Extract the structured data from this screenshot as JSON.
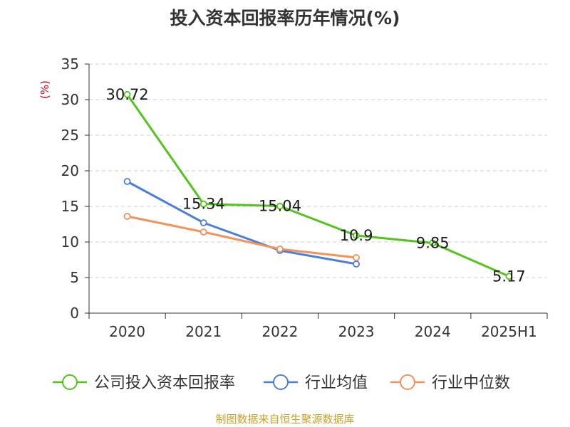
{
  "title": "投入资本回报率历年情况(%)",
  "source": "制图数据来自恒生聚源数据库",
  "chart_data": {
    "type": "line",
    "title": "投入资本回报率历年情况(%)",
    "ylabel": "(%)",
    "xlabel": "",
    "categories": [
      "2020",
      "2021",
      "2022",
      "2023",
      "2024",
      "2025H1"
    ],
    "ylim": [
      0,
      35
    ],
    "yticks": [
      0,
      5,
      10,
      15,
      20,
      25,
      30,
      35
    ],
    "grid": true,
    "legend_position": "bottom",
    "series": [
      {
        "name": "公司投入资本回报率",
        "color": "#52c41a",
        "values": [
          30.72,
          15.34,
          15.04,
          10.9,
          9.85,
          5.17
        ],
        "labels": [
          "30.72",
          "15.34",
          "15.04",
          "10.9",
          "9.85",
          "5.17"
        ]
      },
      {
        "name": "行业均值",
        "color": "#4a7fdb",
        "values": [
          18.5,
          12.7,
          8.8,
          6.9,
          null,
          null
        ]
      },
      {
        "name": "行业中位数",
        "color": "#f4925a",
        "values": [
          13.6,
          11.4,
          9.0,
          7.8,
          null,
          null
        ]
      }
    ]
  }
}
